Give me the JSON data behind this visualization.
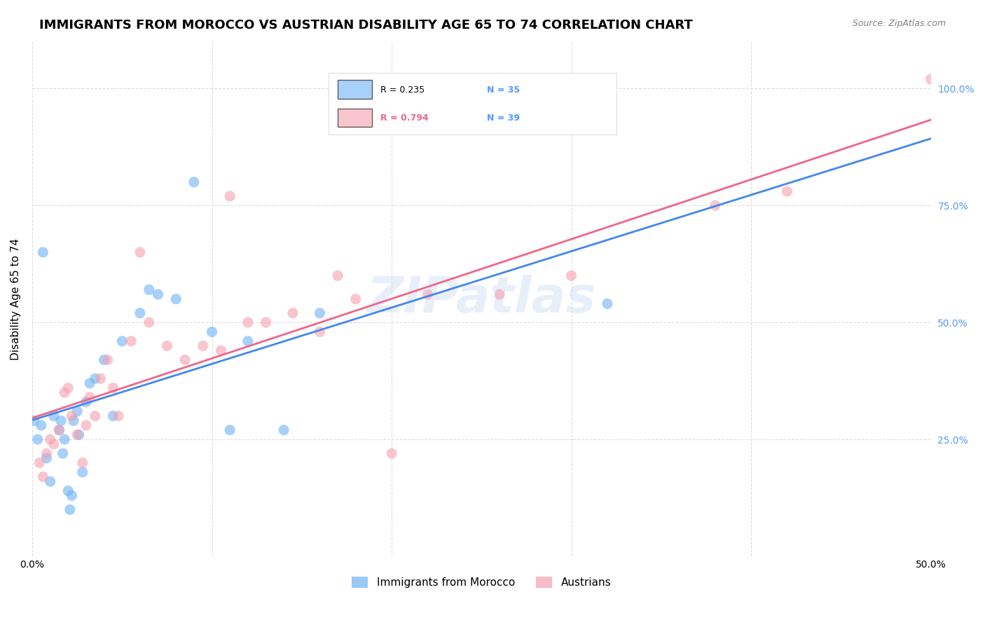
{
  "title": "IMMIGRANTS FROM MOROCCO VS AUSTRIAN DISABILITY AGE 65 TO 74 CORRELATION CHART",
  "source": "Source: ZipAtlas.com",
  "xlabel": "",
  "ylabel": "Disability Age 65 to 74",
  "xlim": [
    0.0,
    0.5
  ],
  "ylim": [
    0.0,
    1.05
  ],
  "xticks": [
    0.0,
    0.1,
    0.2,
    0.3,
    0.4,
    0.5
  ],
  "xticklabels": [
    "0.0%",
    "",
    "",
    "",
    "",
    "50.0%"
  ],
  "yticks": [
    0.0,
    0.25,
    0.5,
    0.75,
    1.0
  ],
  "yticklabels": [
    "",
    "25.0%",
    "50.0%",
    "75.0%",
    "100.0%"
  ],
  "grid_color": "#dddddd",
  "background_color": "#ffffff",
  "watermark": "ZIPatlas",
  "legend_r1": "R = 0.235",
  "legend_n1": "N = 35",
  "legend_r2": "R = 0.794",
  "legend_n2": "N = 39",
  "blue_color": "#6eb3f5",
  "pink_color": "#f5a0b0",
  "blue_line_color": "#4488ee",
  "pink_line_color": "#ee6688",
  "blue_label": "Immigrants from Morocco",
  "pink_label": "Austrians",
  "title_fontsize": 13,
  "axis_label_fontsize": 11,
  "tick_fontsize": 10,
  "right_tick_color": "#5599ff",
  "blue_scatter_x": [
    0.005,
    0.008,
    0.01,
    0.012,
    0.015,
    0.016,
    0.017,
    0.018,
    0.02,
    0.021,
    0.022,
    0.023,
    0.025,
    0.026,
    0.028,
    0.03,
    0.032,
    0.035,
    0.04,
    0.045,
    0.05,
    0.06,
    0.065,
    0.07,
    0.08,
    0.09,
    0.1,
    0.11,
    0.12,
    0.14,
    0.16,
    0.32,
    0.001,
    0.003,
    0.006
  ],
  "blue_scatter_y": [
    0.28,
    0.21,
    0.16,
    0.3,
    0.27,
    0.29,
    0.22,
    0.25,
    0.14,
    0.1,
    0.13,
    0.29,
    0.31,
    0.26,
    0.18,
    0.33,
    0.37,
    0.38,
    0.42,
    0.3,
    0.46,
    0.52,
    0.57,
    0.56,
    0.55,
    0.8,
    0.48,
    0.27,
    0.46,
    0.27,
    0.52,
    0.54,
    0.29,
    0.25,
    0.65
  ],
  "pink_scatter_x": [
    0.004,
    0.006,
    0.008,
    0.01,
    0.012,
    0.015,
    0.018,
    0.02,
    0.022,
    0.025,
    0.028,
    0.03,
    0.032,
    0.035,
    0.038,
    0.042,
    0.048,
    0.055,
    0.06,
    0.065,
    0.075,
    0.085,
    0.095,
    0.105,
    0.12,
    0.13,
    0.145,
    0.16,
    0.18,
    0.2,
    0.22,
    0.26,
    0.3,
    0.38,
    0.42,
    0.045,
    0.11,
    0.17,
    0.5
  ],
  "pink_scatter_y": [
    0.2,
    0.17,
    0.22,
    0.25,
    0.24,
    0.27,
    0.35,
    0.36,
    0.3,
    0.26,
    0.2,
    0.28,
    0.34,
    0.3,
    0.38,
    0.42,
    0.3,
    0.46,
    0.65,
    0.5,
    0.45,
    0.42,
    0.45,
    0.44,
    0.5,
    0.5,
    0.52,
    0.48,
    0.55,
    0.22,
    0.56,
    0.56,
    0.6,
    0.75,
    0.78,
    0.36,
    0.77,
    0.6,
    1.02
  ]
}
